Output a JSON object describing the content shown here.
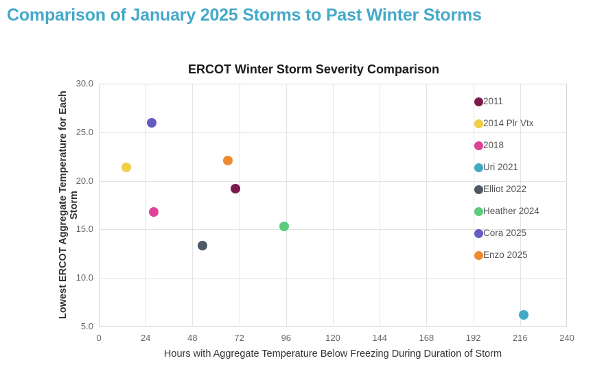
{
  "page": {
    "title": "Comparison of January 2025 Storms to Past Winter Storms",
    "title_color": "#45a9c9"
  },
  "colors": {
    "accent_title": "#45a9c9",
    "gridline": "#e4e4e4",
    "plot_border": "#d6d6d6",
    "tick_text": "#666666",
    "legend_text": "#555555"
  },
  "chart_data": {
    "type": "scatter",
    "title": "ERCOT Winter Storm Severity Comparison",
    "xlabel": "Hours with Aggregate Temperature Below Freezing During Duration of Storm",
    "ylabel": "Lowest ERCOT Aggregate Temperature for Each Storm",
    "xlim": [
      0,
      240
    ],
    "xtick_step": 24,
    "ylim": [
      5,
      30
    ],
    "ytick_step": 5,
    "ytick_decimals": 1,
    "grid": true,
    "legend_position": "upper-right-inside",
    "series": [
      {
        "name": "2011",
        "x": 70,
        "y": 19.2,
        "color": "#7d1a4d"
      },
      {
        "name": "2014 Plr Vtx",
        "x": 14,
        "y": 21.4,
        "color": "#f2ce46"
      },
      {
        "name": "2018",
        "x": 28,
        "y": 16.8,
        "color": "#de4397"
      },
      {
        "name": "Uri 2021",
        "x": 218,
        "y": 6.2,
        "color": "#41a9c5"
      },
      {
        "name": "Elliot 2022",
        "x": 53,
        "y": 13.3,
        "color": "#4d5966"
      },
      {
        "name": "Heather 2024",
        "x": 95,
        "y": 15.3,
        "color": "#5bcb7e"
      },
      {
        "name": "Cora 2025",
        "x": 27,
        "y": 26.0,
        "color": "#655cc2"
      },
      {
        "name": "Enzo 2025",
        "x": 66,
        "y": 22.1,
        "color": "#ee8b31"
      }
    ]
  }
}
